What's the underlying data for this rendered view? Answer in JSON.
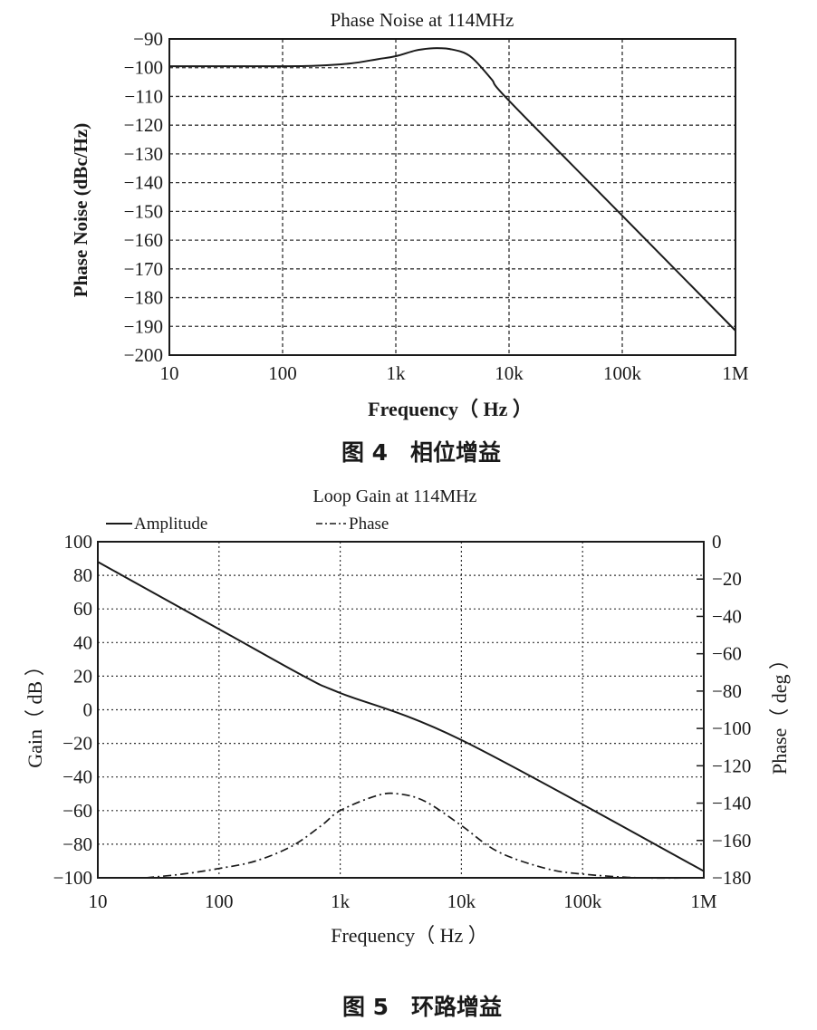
{
  "chart_data": [
    {
      "type": "line",
      "title": "Phase Noise at 114MHz",
      "xlabel": "Frequency（ Hz ）",
      "ylabel": "Phase Noise (dBc/Hz)",
      "x_scale": "log",
      "xlim": [
        10,
        1000000
      ],
      "ylim": [
        -200,
        -90
      ],
      "x_ticks": [
        10,
        100,
        1000,
        10000,
        100000,
        1000000
      ],
      "x_tick_labels": [
        "10",
        "100",
        "1k",
        "10k",
        "100k",
        "1M"
      ],
      "y_ticks": [
        -90,
        -100,
        -110,
        -120,
        -130,
        -140,
        -150,
        -160,
        -170,
        -180,
        -190,
        -200
      ],
      "y_tick_labels": [
        "−90",
        "−100",
        "−110",
        "−120",
        "−130",
        "−140",
        "−150",
        "−160",
        "−170",
        "−180",
        "−190",
        "−200"
      ],
      "grid": true,
      "series": [
        {
          "line_style": "solid",
          "x": [
            10,
            100,
            200,
            400,
            700,
            1000,
            1500,
            2000,
            2500,
            3000,
            4000,
            5000,
            7000,
            10000,
            100000,
            1000000
          ],
          "y": [
            -99.5,
            -99.5,
            -99.3,
            -98.5,
            -97.0,
            -96.0,
            -94.0,
            -93.3,
            -93.2,
            -93.5,
            -94.8,
            -97.5,
            -104.0,
            -111.5,
            -151.5,
            -191.5
          ]
        }
      ],
      "caption": "图 4　相位增益"
    },
    {
      "type": "line",
      "title": "Loop Gain at 114MHz",
      "xlabel": "Frequency（ Hz ）",
      "ylabel": "Gain（ dB ）",
      "y2label": "Phase（ deg ）",
      "x_scale": "log",
      "xlim": [
        10,
        1000000
      ],
      "ylim": [
        -100,
        100
      ],
      "y2lim": [
        -180,
        0
      ],
      "x_ticks": [
        10,
        100,
        1000,
        10000,
        100000,
        1000000
      ],
      "x_tick_labels": [
        "10",
        "100",
        "1k",
        "10k",
        "100k",
        "1M"
      ],
      "y_ticks": [
        100,
        80,
        60,
        40,
        20,
        0,
        -20,
        -40,
        -60,
        -80,
        -100
      ],
      "y_tick_labels": [
        "100",
        "80",
        "60",
        "40",
        "20",
        "0",
        "−20",
        "−40",
        "−60",
        "−80",
        "−100"
      ],
      "y2_ticks": [
        0,
        -20,
        -40,
        -60,
        -80,
        -100,
        -120,
        -140,
        -160,
        -180
      ],
      "y2_tick_labels": [
        "0",
        "−20",
        "−40",
        "−60",
        "−80",
        "−100",
        "−120",
        "−140",
        "−160",
        "−180"
      ],
      "grid": true,
      "legend_position": "top-left",
      "series": [
        {
          "name": "Amplitude",
          "legend_label": "—Amplitude",
          "line_style": "solid",
          "axis": "left",
          "x": [
            10,
            100,
            500,
            1000,
            10000,
            1000000
          ],
          "y": [
            88,
            48,
            20,
            10,
            -18,
            -96
          ]
        },
        {
          "name": "Phase",
          "legend_label": "-··Phase",
          "line_style": "dash-dot",
          "axis": "right",
          "x": [
            25,
            50,
            100,
            200,
            400,
            700,
            1000,
            2000,
            3000,
            5000,
            10000,
            20000,
            50000,
            100000,
            300000,
            1000000
          ],
          "y": [
            -180,
            -178,
            -175,
            -171,
            -163,
            -152,
            -144,
            -136,
            -135,
            -139,
            -152,
            -166,
            -175,
            -178,
            -180,
            -180
          ]
        }
      ],
      "caption": "图 5　环路增益"
    }
  ]
}
